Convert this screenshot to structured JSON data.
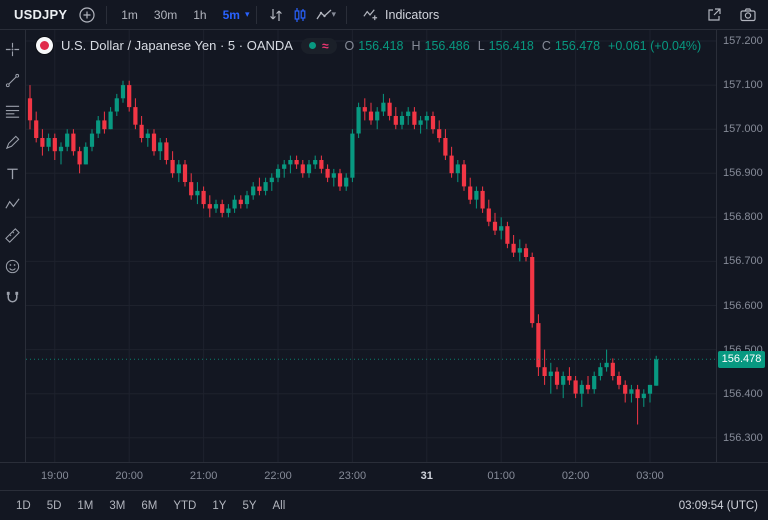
{
  "top_toolbar": {
    "symbol": "USDJPY",
    "intervals": [
      {
        "label": "1m",
        "active": false
      },
      {
        "label": "30m",
        "active": false
      },
      {
        "label": "1h",
        "active": false
      },
      {
        "label": "5m",
        "active": true
      }
    ],
    "indicators_label": "Indicators",
    "icons": [
      "plus-circle",
      "compare-arrows",
      "candles",
      "area-chart",
      "chevron-down",
      "indicators",
      "external-link",
      "camera"
    ]
  },
  "left_toolbar": {
    "tools": [
      "crosshair",
      "trend-line",
      "fib-retracement",
      "brush",
      "text",
      "pattern",
      "measure",
      "emoji",
      "magnet"
    ]
  },
  "legend": {
    "title": "U.S. Dollar / Japanese Yen · 5 · OANDA",
    "ohlc": {
      "o_label": "O",
      "o": "156.418",
      "h_label": "H",
      "h": "156.486",
      "l_label": "L",
      "l": "156.418",
      "c_label": "C",
      "c": "156.478",
      "change": "+0.061 (+0.04%)"
    }
  },
  "price_axis": {
    "labels": [
      "157.200",
      "157.100",
      "157.000",
      "156.900",
      "156.800",
      "156.700",
      "156.600",
      "156.500",
      "156.400",
      "156.300"
    ],
    "current": "156.478"
  },
  "bottom_toolbar": {
    "ranges": [
      "1D",
      "5D",
      "1M",
      "3M",
      "6M",
      "YTD",
      "1Y",
      "5Y",
      "All"
    ],
    "clock": "03:09:54 (UTC)"
  },
  "colors": {
    "up": "#089981",
    "down": "#f23645",
    "accent": "#2962ff",
    "grid": "#1e222d",
    "badge": "#089981",
    "text_muted": "#868b98"
  },
  "chart_data": {
    "type": "candlestick",
    "title": "U.S. Dollar / Japanese Yen",
    "symbol": "USDJPY",
    "interval": "5",
    "exchange": "OANDA",
    "ylim": [
      156.245,
      157.225
    ],
    "price_range": [
      156.245,
      157.225
    ],
    "grid_price_step": 0.1,
    "hour_marks": [
      {
        "label": "19:00",
        "index": 4,
        "major": false
      },
      {
        "label": "20:00",
        "index": 16,
        "major": false
      },
      {
        "label": "21:00",
        "index": 28,
        "major": false
      },
      {
        "label": "22:00",
        "index": 40,
        "major": false
      },
      {
        "label": "23:00",
        "index": 52,
        "major": false
      },
      {
        "label": "31",
        "index": 64,
        "major": true
      },
      {
        "label": "01:00",
        "index": 76,
        "major": false
      },
      {
        "label": "02:00",
        "index": 88,
        "major": false
      },
      {
        "label": "03:00",
        "index": 100,
        "major": false
      }
    ],
    "start_time": "18:40",
    "candles": [
      [
        157.07,
        157.1,
        157.0,
        157.02
      ],
      [
        157.02,
        157.04,
        156.97,
        156.98
      ],
      [
        156.98,
        157.0,
        156.94,
        156.96
      ],
      [
        156.96,
        156.99,
        156.95,
        156.98
      ],
      [
        156.98,
        156.99,
        156.93,
        156.95
      ],
      [
        156.95,
        156.97,
        156.92,
        156.96
      ],
      [
        156.96,
        157.0,
        156.95,
        156.99
      ],
      [
        156.99,
        157.0,
        156.94,
        156.95
      ],
      [
        156.95,
        156.96,
        156.9,
        156.92
      ],
      [
        156.92,
        156.97,
        156.92,
        156.96
      ],
      [
        156.96,
        157.0,
        156.95,
        156.99
      ],
      [
        156.99,
        157.03,
        156.98,
        157.02
      ],
      [
        157.02,
        157.04,
        156.99,
        157.0
      ],
      [
        157.0,
        157.05,
        157.0,
        157.04
      ],
      [
        157.04,
        157.08,
        157.03,
        157.07
      ],
      [
        157.07,
        157.11,
        157.06,
        157.1
      ],
      [
        157.1,
        157.11,
        157.04,
        157.05
      ],
      [
        157.05,
        157.07,
        157.0,
        157.01
      ],
      [
        157.01,
        157.03,
        156.97,
        156.98
      ],
      [
        156.98,
        157.0,
        156.96,
        156.99
      ],
      [
        156.99,
        157.0,
        156.94,
        156.95
      ],
      [
        156.95,
        156.98,
        156.93,
        156.97
      ],
      [
        156.97,
        156.98,
        156.92,
        156.93
      ],
      [
        156.93,
        156.95,
        156.89,
        156.9
      ],
      [
        156.9,
        156.93,
        156.88,
        156.92
      ],
      [
        156.92,
        156.93,
        156.87,
        156.88
      ],
      [
        156.88,
        156.9,
        156.84,
        156.85
      ],
      [
        156.85,
        156.88,
        156.83,
        156.86
      ],
      [
        156.86,
        156.87,
        156.82,
        156.83
      ],
      [
        156.83,
        156.85,
        156.8,
        156.82
      ],
      [
        156.82,
        156.84,
        156.81,
        156.83
      ],
      [
        156.83,
        156.84,
        156.8,
        156.81
      ],
      [
        156.81,
        156.83,
        156.8,
        156.82
      ],
      [
        156.82,
        156.85,
        156.81,
        156.84
      ],
      [
        156.84,
        156.85,
        156.82,
        156.83
      ],
      [
        156.83,
        156.86,
        156.82,
        156.85
      ],
      [
        156.85,
        156.88,
        156.84,
        156.87
      ],
      [
        156.87,
        156.89,
        156.85,
        156.86
      ],
      [
        156.86,
        156.89,
        156.85,
        156.88
      ],
      [
        156.88,
        156.9,
        156.86,
        156.89
      ],
      [
        156.89,
        156.92,
        156.88,
        156.91
      ],
      [
        156.91,
        156.93,
        156.89,
        156.92
      ],
      [
        156.92,
        156.94,
        156.9,
        156.93
      ],
      [
        156.93,
        156.94,
        156.91,
        156.92
      ],
      [
        156.92,
        156.93,
        156.89,
        156.9
      ],
      [
        156.9,
        156.93,
        156.89,
        156.92
      ],
      [
        156.92,
        156.94,
        156.91,
        156.93
      ],
      [
        156.93,
        156.94,
        156.9,
        156.91
      ],
      [
        156.91,
        156.92,
        156.88,
        156.89
      ],
      [
        156.89,
        156.91,
        156.87,
        156.9
      ],
      [
        156.9,
        156.91,
        156.86,
        156.87
      ],
      [
        156.87,
        156.9,
        156.86,
        156.89
      ],
      [
        156.89,
        157.0,
        156.88,
        156.99
      ],
      [
        156.99,
        157.06,
        156.98,
        157.05
      ],
      [
        157.05,
        157.07,
        157.02,
        157.04
      ],
      [
        157.04,
        157.06,
        157.01,
        157.02
      ],
      [
        157.02,
        157.05,
        157.0,
        157.04
      ],
      [
        157.04,
        157.08,
        157.03,
        157.06
      ],
      [
        157.06,
        157.07,
        157.02,
        157.03
      ],
      [
        157.03,
        157.05,
        157.0,
        157.01
      ],
      [
        157.01,
        157.04,
        157.0,
        157.03
      ],
      [
        157.03,
        157.05,
        157.01,
        157.04
      ],
      [
        157.04,
        157.05,
        157.0,
        157.01
      ],
      [
        157.01,
        157.03,
        156.99,
        157.02
      ],
      [
        157.02,
        157.04,
        157.0,
        157.03
      ],
      [
        157.03,
        157.04,
        156.99,
        157.0
      ],
      [
        157.0,
        157.02,
        156.97,
        156.98
      ],
      [
        156.98,
        157.0,
        156.93,
        156.94
      ],
      [
        156.94,
        156.96,
        156.89,
        156.9
      ],
      [
        156.9,
        156.93,
        156.88,
        156.92
      ],
      [
        156.92,
        156.93,
        156.86,
        156.87
      ],
      [
        156.87,
        156.89,
        156.83,
        156.84
      ],
      [
        156.84,
        156.87,
        156.82,
        156.86
      ],
      [
        156.86,
        156.87,
        156.81,
        156.82
      ],
      [
        156.82,
        156.84,
        156.78,
        156.79
      ],
      [
        156.79,
        156.81,
        156.76,
        156.77
      ],
      [
        156.77,
        156.8,
        156.75,
        156.78
      ],
      [
        156.78,
        156.79,
        156.73,
        156.74
      ],
      [
        156.74,
        156.76,
        156.71,
        156.72
      ],
      [
        156.72,
        156.75,
        156.7,
        156.73
      ],
      [
        156.73,
        156.74,
        156.7,
        156.71
      ],
      [
        156.71,
        156.72,
        156.55,
        156.56
      ],
      [
        156.56,
        156.58,
        156.44,
        156.46
      ],
      [
        156.46,
        156.5,
        156.42,
        156.44
      ],
      [
        156.44,
        156.47,
        156.4,
        156.45
      ],
      [
        156.45,
        156.46,
        156.41,
        156.42
      ],
      [
        156.42,
        156.45,
        156.39,
        156.44
      ],
      [
        156.44,
        156.46,
        156.42,
        156.43
      ],
      [
        156.43,
        156.44,
        156.39,
        156.4
      ],
      [
        156.4,
        156.43,
        156.37,
        156.42
      ],
      [
        156.42,
        156.44,
        156.4,
        156.41
      ],
      [
        156.41,
        156.45,
        156.4,
        156.44
      ],
      [
        156.44,
        156.47,
        156.43,
        156.46
      ],
      [
        156.46,
        156.5,
        156.45,
        156.47
      ],
      [
        156.47,
        156.48,
        156.43,
        156.44
      ],
      [
        156.44,
        156.45,
        156.41,
        156.42
      ],
      [
        156.42,
        156.43,
        156.38,
        156.4
      ],
      [
        156.4,
        156.42,
        156.38,
        156.41
      ],
      [
        156.41,
        156.42,
        156.33,
        156.39
      ],
      [
        156.39,
        156.41,
        156.37,
        156.4
      ],
      [
        156.4,
        156.42,
        156.38,
        156.42
      ],
      [
        156.418,
        156.486,
        156.418,
        156.478
      ]
    ],
    "last_price": 156.478
  }
}
